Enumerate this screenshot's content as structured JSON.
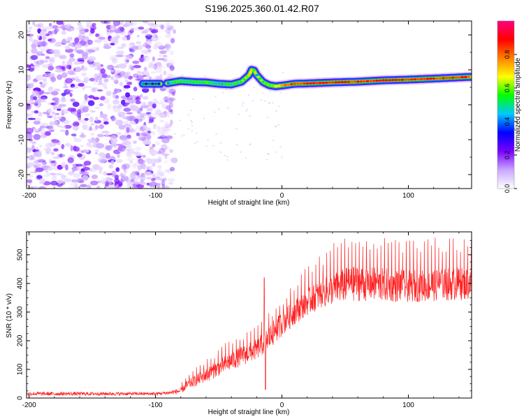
{
  "figure_title": "S196.2025.360.01.42.R07",
  "chart_data": [
    {
      "type": "heatmap",
      "title": "S196.2025.360.01.42.R07",
      "xlabel": "Height of straight line (km)",
      "ylabel": "Frequency (Hz)",
      "xlim": [
        -202,
        150
      ],
      "ylim": [
        -24,
        24
      ],
      "xticks": [
        -200,
        -100,
        0,
        100
      ],
      "yticks": [
        -20,
        -10,
        0,
        10,
        20
      ],
      "colorbar": {
        "label": "Normalized spectral amplitude",
        "range": [
          0.0,
          1.0
        ],
        "ticks": [
          "0.0",
          "0.2",
          "0.4",
          "0.6",
          "0.8"
        ],
        "colormap": [
          "#ffffff",
          "#c9a7ff",
          "#7a00ff",
          "#0000ff",
          "#00c8ff",
          "#00ff00",
          "#ffff00",
          "#ff8000",
          "#ff0000",
          "#ff0080"
        ]
      },
      "noise_region_x": [
        -202,
        -93
      ],
      "signal_track": {
        "x": [
          -110,
          -96,
          -90,
          -80,
          -70,
          -60,
          -50,
          -40,
          -32,
          -26,
          -24,
          -22,
          -20,
          -15,
          -10,
          -5,
          0,
          10,
          20,
          40,
          60,
          80,
          100,
          120,
          150
        ],
        "frequency_hz": [
          6,
          6,
          6.2,
          6.8,
          6.5,
          6.4,
          6.0,
          5.8,
          6.6,
          8.5,
          10,
          9.8,
          8.5,
          6.5,
          5.6,
          5.3,
          5.5,
          6.0,
          6.1,
          6.4,
          6.6,
          7.0,
          7.2,
          7.5,
          8.0
        ],
        "amplitude": [
          0.35,
          0.35,
          0.45,
          0.55,
          0.5,
          0.55,
          0.45,
          0.5,
          0.55,
          0.65,
          0.7,
          0.6,
          0.45,
          0.5,
          0.55,
          0.7,
          0.75,
          0.85,
          0.9,
          0.9,
          0.85,
          0.9,
          0.88,
          0.85,
          0.85
        ]
      }
    },
    {
      "type": "line",
      "xlabel": "Height of straight line (km)",
      "ylabel": "SNR (10 * v/v)",
      "xlim": [
        -202,
        150
      ],
      "ylim": [
        0,
        580
      ],
      "xticks": [
        -200,
        -100,
        0,
        100
      ],
      "yticks": [
        0,
        100,
        200,
        300,
        400,
        500
      ],
      "color": "#ff2020",
      "series": [
        {
          "name": "SNR",
          "envelope_x": [
            -202,
            -100,
            -90,
            -80,
            -75,
            -60,
            -40,
            -20,
            -10,
            0,
            10,
            20,
            30,
            40,
            50,
            60,
            80,
            100,
            120,
            150
          ],
          "baseline": [
            15,
            15,
            18,
            25,
            45,
            80,
            130,
            170,
            210,
            260,
            300,
            335,
            360,
            380,
            395,
            400,
            395,
            390,
            395,
            400
          ],
          "upper": [
            30,
            25,
            30,
            50,
            80,
            140,
            210,
            250,
            310,
            360,
            410,
            460,
            500,
            540,
            570,
            575,
            560,
            550,
            560,
            560
          ],
          "lower": [
            5,
            5,
            8,
            10,
            25,
            50,
            90,
            120,
            150,
            200,
            250,
            290,
            320,
            340,
            350,
            350,
            345,
            345,
            350,
            350
          ]
        }
      ]
    }
  ]
}
